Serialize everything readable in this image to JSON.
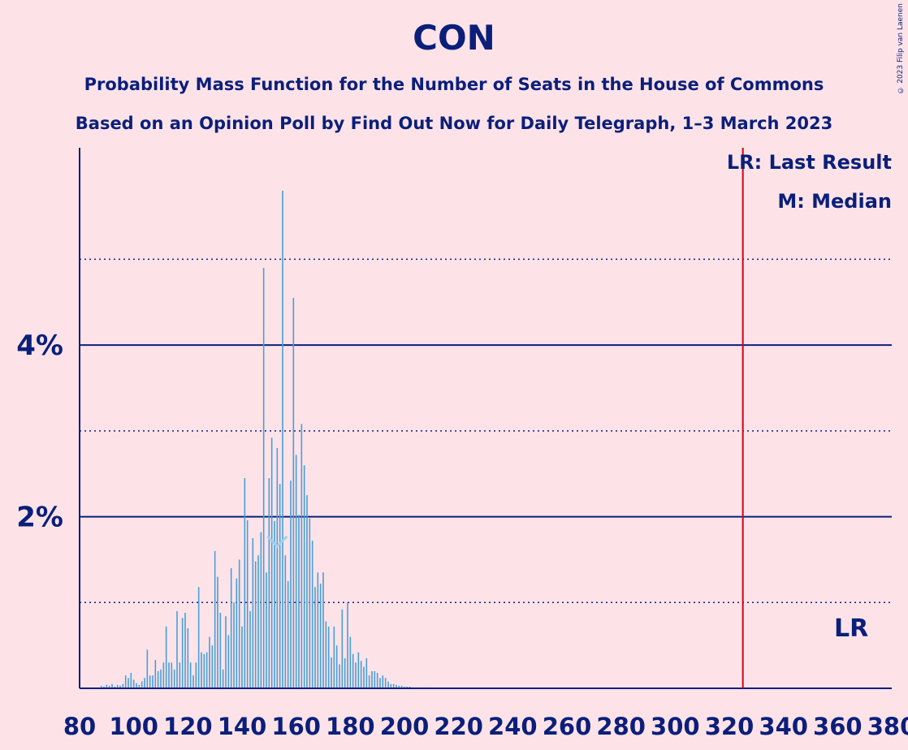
{
  "chart_data": {
    "type": "bar",
    "title": "CON",
    "subtitle1": "Probability Mass Function for the Number of Seats in the House of Commons",
    "subtitle2": "Based on an Opinion Poll by Find Out Now for Daily Telegraph, 1–3 March 2023",
    "xlim": [
      80,
      380
    ],
    "ylim": [
      0,
      6.3
    ],
    "x_ticks": [
      80,
      100,
      120,
      140,
      160,
      180,
      200,
      220,
      240,
      260,
      280,
      300,
      320,
      340,
      360,
      380
    ],
    "y_ticks_major": [
      {
        "value": 2,
        "label": "2%"
      },
      {
        "value": 4,
        "label": "4%"
      }
    ],
    "y_ticks_minor": [
      1,
      3,
      5
    ],
    "last_result_seats": 325,
    "last_result_label": "LR",
    "median_seats": 153,
    "legend": [
      "LR: Last Result",
      "M: Median"
    ],
    "start_seat": 88,
    "values": [
      0.03,
      0.02,
      0.04,
      0.03,
      0.05,
      0.02,
      0.04,
      0.03,
      0.05,
      0.15,
      0.12,
      0.18,
      0.1,
      0.06,
      0.04,
      0.08,
      0.12,
      0.45,
      0.15,
      0.15,
      0.33,
      0.2,
      0.22,
      0.3,
      0.72,
      0.3,
      0.3,
      0.22,
      0.9,
      0.3,
      0.82,
      0.88,
      0.7,
      0.3,
      0.15,
      0.3,
      1.18,
      0.42,
      0.4,
      0.42,
      0.6,
      0.5,
      1.6,
      1.3,
      0.88,
      0.22,
      0.84,
      0.62,
      1.4,
      1.0,
      1.28,
      1.5,
      0.72,
      2.45,
      1.96,
      0.9,
      1.75,
      1.48,
      1.55,
      1.82,
      4.9,
      1.35,
      2.45,
      2.92,
      1.95,
      2.8,
      2.38,
      5.8,
      1.55,
      1.25,
      2.42,
      4.55,
      2.72,
      2.02,
      3.08,
      2.6,
      2.25,
      1.98,
      1.72,
      1.18,
      1.35,
      1.22,
      1.35,
      0.78,
      0.72,
      0.36,
      0.72,
      0.5,
      0.28,
      0.92,
      0.35,
      1.0,
      0.6,
      0.4,
      0.3,
      0.42,
      0.32,
      0.25,
      0.35,
      0.15,
      0.2,
      0.2,
      0.18,
      0.12,
      0.15,
      0.12,
      0.08,
      0.05,
      0.05,
      0.04,
      0.03,
      0.03,
      0.02,
      0.02,
      0.02,
      0.01,
      0.01,
      0.01,
      0.01,
      0.01,
      0.01,
      0.01
    ]
  },
  "copyright": "© 2023 Filip van Laenen",
  "colors": {
    "background": "#fde3e8",
    "axis": "#0b1f7a",
    "bar": "#4a9fd6",
    "last_result": "#d0021b",
    "median": "#9fd0ee"
  }
}
